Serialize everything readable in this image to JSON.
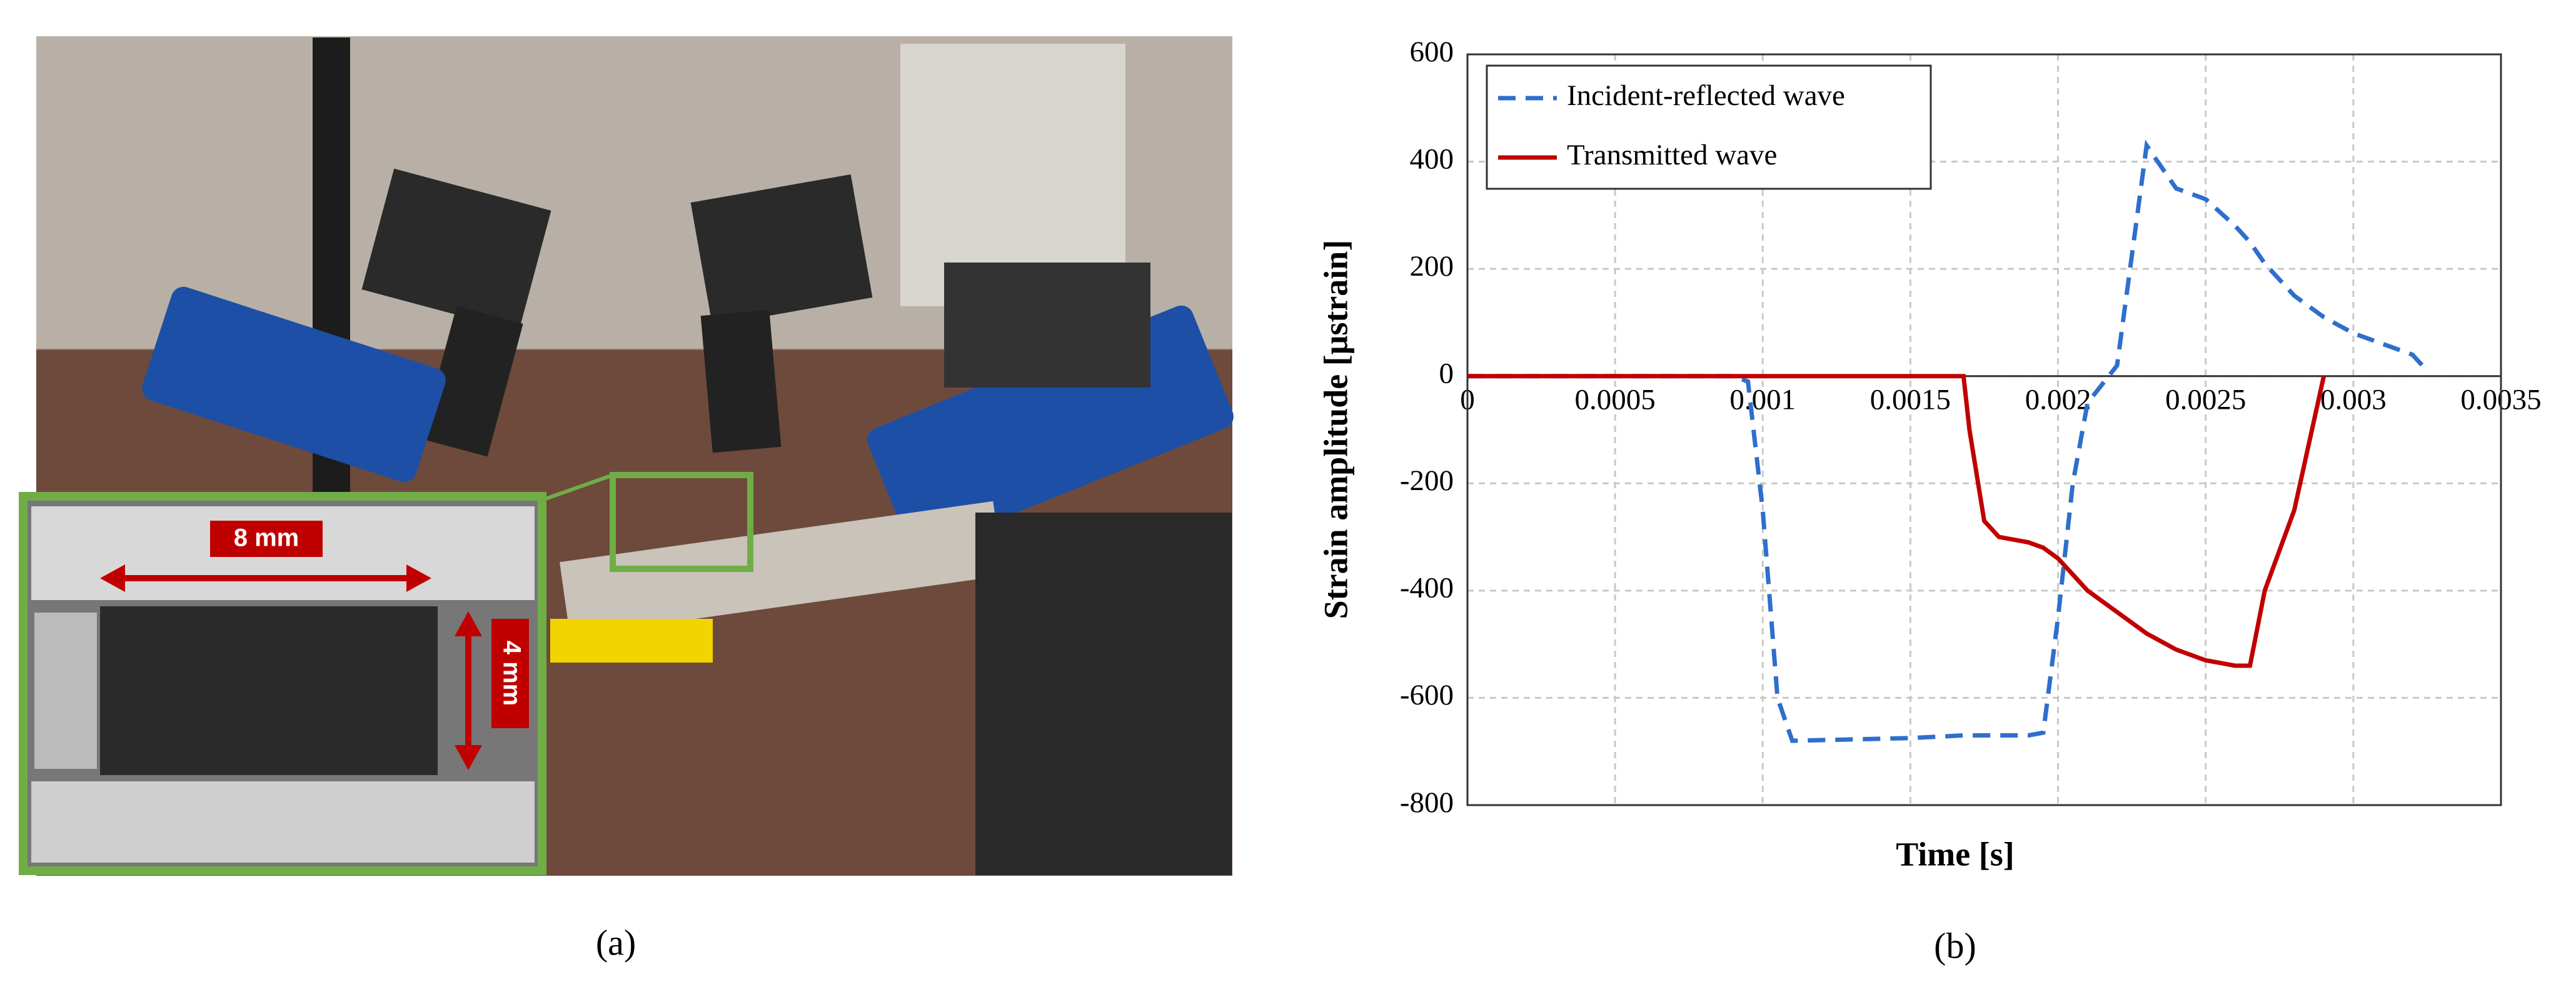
{
  "panel_a": {
    "label": "(a)",
    "scale_labels": [
      "8 mm",
      "4 mm"
    ]
  },
  "panel_b": {
    "label": "(b)"
  },
  "chart_data": {
    "type": "line",
    "xlabel": "Time [s]",
    "ylabel": "Strain amplitude [μstrain]",
    "x": [
      0,
      0.0009,
      0.00095,
      0.001,
      0.00105,
      0.0011,
      0.0015,
      0.00168,
      0.0017,
      0.00175,
      0.0018,
      0.0019,
      0.00195,
      0.002,
      0.00205,
      0.0021,
      0.0022,
      0.0023,
      0.0024,
      0.0025,
      0.0026,
      0.00265,
      0.0027,
      0.0028,
      0.0029,
      0.003,
      0.0031,
      0.0032,
      0.00325
    ],
    "series": [
      {
        "name": "Incident-reflected wave",
        "color": "#2e6fcc",
        "line_style": "dashed",
        "values": [
          0,
          0,
          -10,
          -250,
          -600,
          -680,
          -675,
          -670,
          -670,
          -670,
          -670,
          -670,
          -665,
          -450,
          -200,
          -50,
          20,
          430,
          350,
          330,
          280,
          250,
          210,
          150,
          110,
          80,
          60,
          40,
          10
        ]
      },
      {
        "name": "Transmitted wave",
        "color": "#c00000",
        "line_style": "solid",
        "values": [
          0,
          0,
          0,
          0,
          0,
          0,
          0,
          0,
          -100,
          -270,
          -300,
          -310,
          -320,
          -340,
          -370,
          -400,
          -440,
          -480,
          -510,
          -530,
          -540,
          -540,
          -400,
          -250,
          0,
          null,
          null,
          null,
          null
        ]
      }
    ],
    "xlim": [
      0,
      0.0035
    ],
    "xticks": [
      0,
      0.0005,
      0.001,
      0.0015,
      0.002,
      0.0025,
      0.003,
      0.0035
    ],
    "ylim": [
      -800,
      600
    ],
    "yticks": [
      -800,
      -600,
      -400,
      -200,
      0,
      200,
      400,
      600
    ],
    "grid": true,
    "legend_position": "upper left"
  }
}
